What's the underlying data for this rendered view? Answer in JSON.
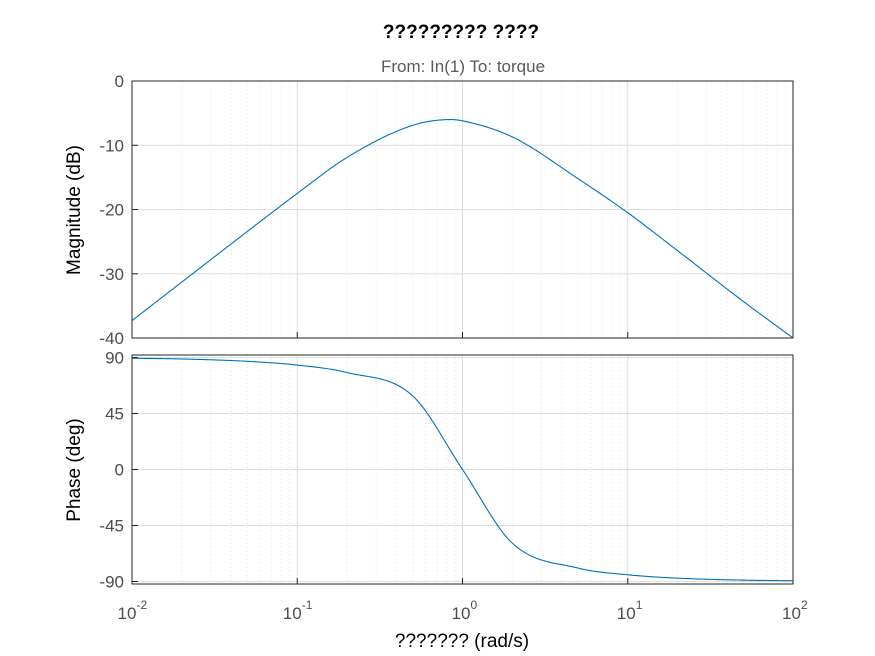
{
  "chart_data": {
    "type": "line",
    "title": "????????? ????",
    "subtitle": "From: In(1)  To: torque",
    "xlabel": "???????  (rad/s)",
    "xscale": "log",
    "xlim": [
      0.01,
      100
    ],
    "x_ticks": [
      {
        "base": "10",
        "exp": "-2"
      },
      {
        "base": "10",
        "exp": "-1"
      },
      {
        "base": "10",
        "exp": "0"
      },
      {
        "base": "10",
        "exp": "1"
      },
      {
        "base": "10",
        "exp": "2"
      }
    ],
    "grid": true,
    "line_color": "#0072bd",
    "panels": [
      {
        "name": "magnitude",
        "ylabel": "Magnitude (dB)",
        "ylim": [
          -40,
          0
        ],
        "yticks": [
          "0",
          "-10",
          "-20",
          "-30",
          "-40"
        ],
        "x": [
          0.01,
          0.02,
          0.05,
          0.1,
          0.2,
          0.5,
          0.85,
          1,
          2,
          5,
          10,
          20,
          50,
          100
        ],
        "y": [
          -37.3,
          -31.3,
          -23.4,
          -17.5,
          -11.9,
          -6.9,
          -6.0,
          -6.2,
          -8.7,
          -15.2,
          -20.5,
          -26.4,
          -34.3,
          -40.0
        ]
      },
      {
        "name": "phase",
        "ylabel": "Phase (deg)",
        "ylim": [
          -92,
          92
        ],
        "yticks": [
          "90",
          "45",
          "0",
          "-45",
          "-90"
        ],
        "x": [
          0.01,
          0.02,
          0.05,
          0.1,
          0.2,
          0.5,
          1,
          2,
          5,
          10,
          20,
          50,
          100
        ],
        "y": [
          89.4,
          88.8,
          86.9,
          83.9,
          77.9,
          59.1,
          0,
          -59.1,
          -79.2,
          -84.6,
          -87.3,
          -88.9,
          -89.4
        ]
      }
    ]
  }
}
